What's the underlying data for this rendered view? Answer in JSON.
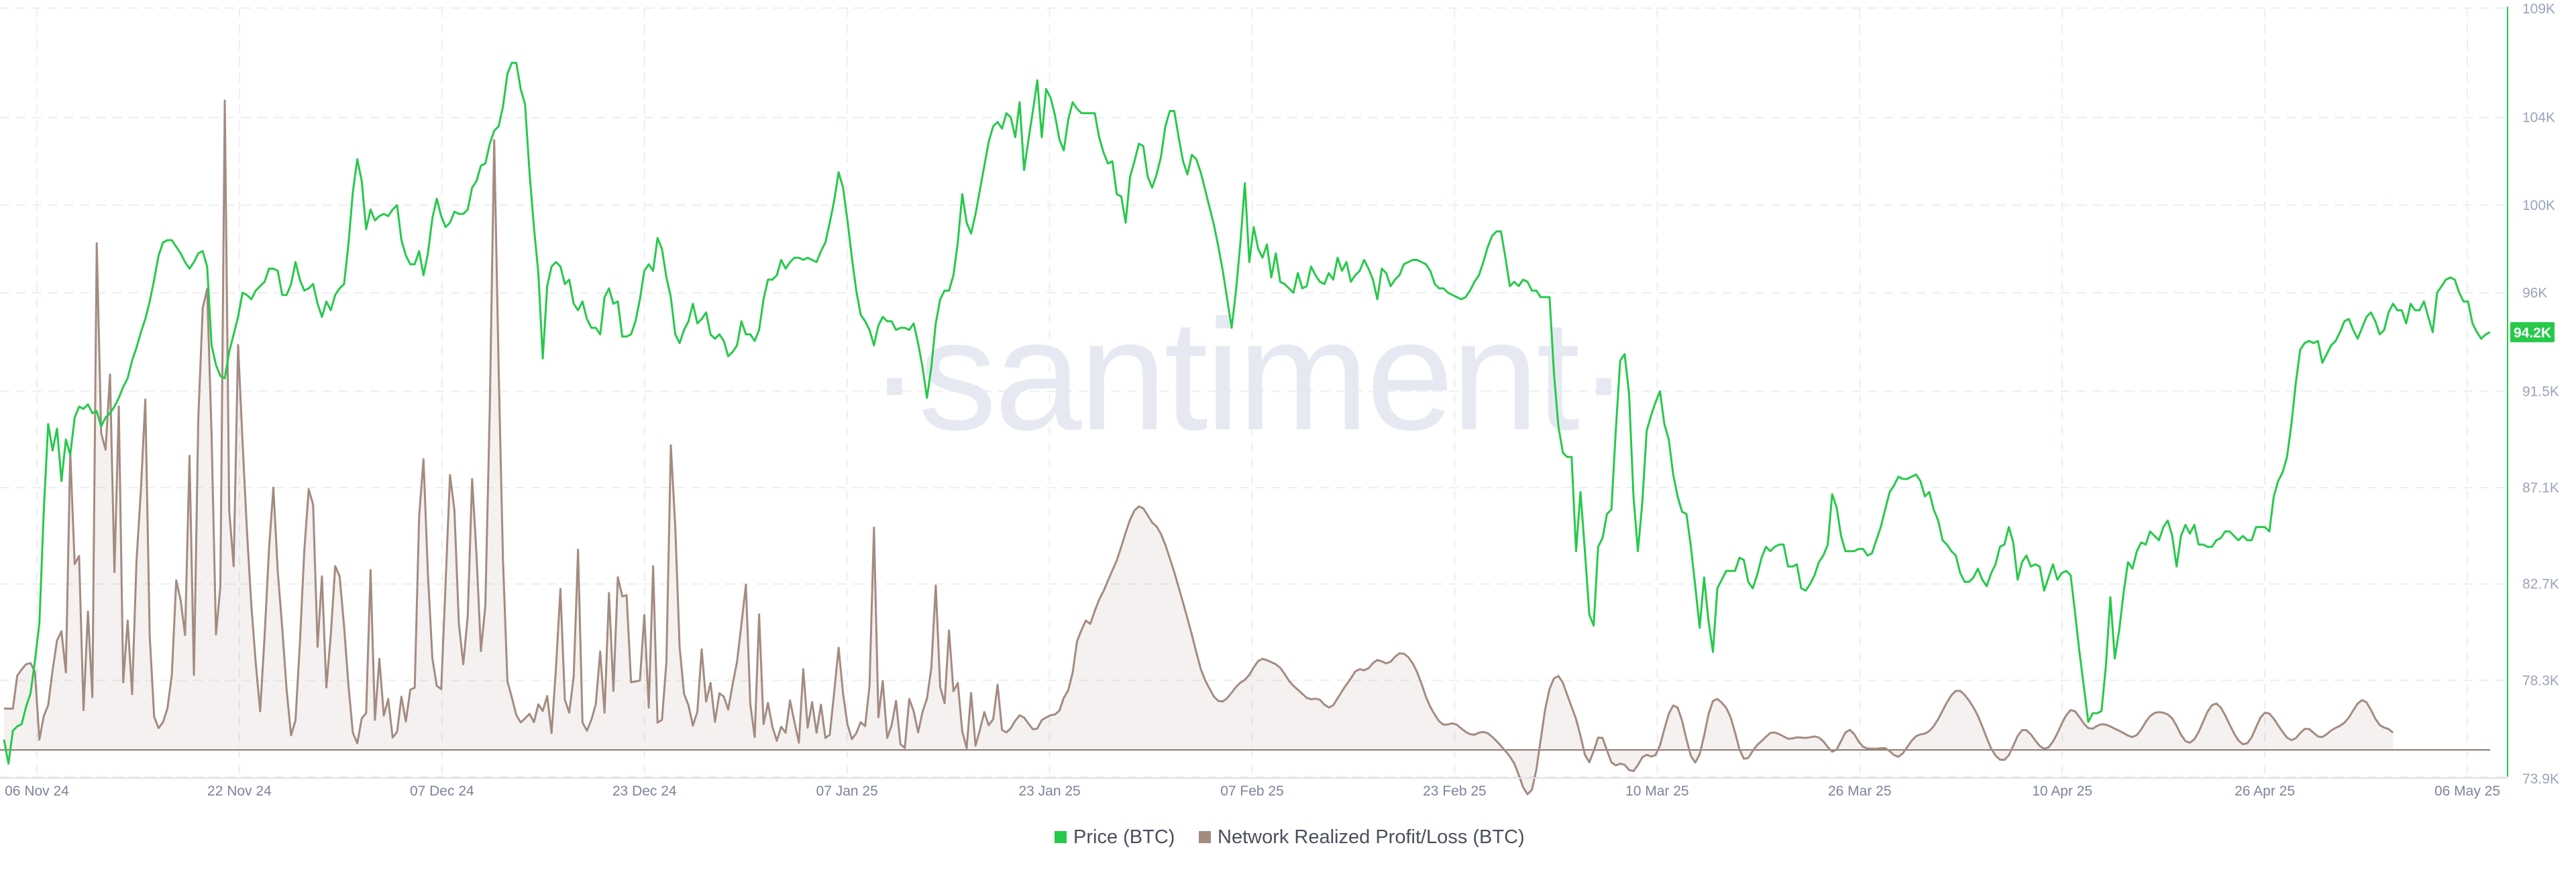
{
  "chart_data": {
    "type": "line",
    "watermark": "·santiment·",
    "x_tick_labels": [
      "06 Nov 24",
      "22 Nov 24",
      "07 Dec 24",
      "23 Dec 24",
      "07 Jan 25",
      "23 Jan 25",
      "07 Feb 25",
      "23 Feb 25",
      "10 Mar 25",
      "26 Mar 25",
      "10 Apr 25",
      "26 Apr 25",
      "06 May 25"
    ],
    "y_tick_labels": [
      "109K",
      "104K",
      "100K",
      "96K",
      "91.5K",
      "87.1K",
      "82.7K",
      "78.3K",
      "73.9K"
    ],
    "y_range": [
      73.9,
      109
    ],
    "grid": true,
    "legend_position": "bottom-center",
    "current_price_label": "94.2K",
    "series": [
      {
        "name": "Price (BTC)",
        "color": "#26c94a",
        "axis": "right",
        "values": [
          75.6,
          74.5,
          76.0,
          76.2,
          76.3,
          77.1,
          77.7,
          79.2,
          80.9,
          86.0,
          90.0,
          88.8,
          89.8,
          87.4,
          89.3,
          88.6,
          90.3,
          90.8,
          90.7,
          90.9,
          90.5,
          90.6,
          89.9,
          90.3,
          90.5,
          90.8,
          91.2,
          91.7,
          92.1,
          92.9,
          93.5,
          94.2,
          94.8,
          95.6,
          96.6,
          97.7,
          98.3,
          98.4,
          98.4,
          98.1,
          97.8,
          97.4,
          97.1,
          97.4,
          97.8,
          97.9,
          97.2,
          93.6,
          92.7,
          92.2,
          92.1,
          93.3,
          94.1,
          94.9,
          96.0,
          95.9,
          95.7,
          96.1,
          96.3,
          96.5,
          97.1,
          97.1,
          97.0,
          95.9,
          95.9,
          96.4,
          97.4,
          96.6,
          96.1,
          96.2,
          96.4,
          95.5,
          94.9,
          95.6,
          95.2,
          95.9,
          96.2,
          96.4,
          98.2,
          100.6,
          102.1,
          101.1,
          98.9,
          99.8,
          99.3,
          99.5,
          99.6,
          99.5,
          99.8,
          100.0,
          98.4,
          97.7,
          97.3,
          97.3,
          97.9,
          96.8,
          97.8,
          99.4,
          100.3,
          99.5,
          99.0,
          99.2,
          99.7,
          99.6,
          99.6,
          99.8,
          100.8,
          101.1,
          101.8,
          101.9,
          102.8,
          103.4,
          103.6,
          104.5,
          106.0,
          106.5,
          106.5,
          105.3,
          104.6,
          101.5,
          99.0,
          96.9,
          93.0,
          96.3,
          97.2,
          97.4,
          97.2,
          96.4,
          96.6,
          95.5,
          95.2,
          95.6,
          94.8,
          94.4,
          94.4,
          94.1,
          95.8,
          96.2,
          95.5,
          95.6,
          94.0,
          94.0,
          94.1,
          94.7,
          95.7,
          97.0,
          97.3,
          97.0,
          98.5,
          98.0,
          96.7,
          95.8,
          94.1,
          93.7,
          94.3,
          94.7,
          95.5,
          94.6,
          94.8,
          95.1,
          94.1,
          93.9,
          94.1,
          93.8,
          93.1,
          93.3,
          93.6,
          94.7,
          94.1,
          94.1,
          93.8,
          94.3,
          95.7,
          96.6,
          96.6,
          96.8,
          97.5,
          97.1,
          97.4,
          97.6,
          97.6,
          97.5,
          97.6,
          97.5,
          97.4,
          97.9,
          98.3,
          99.2,
          100.2,
          101.5,
          100.8,
          99.3,
          97.6,
          96.1,
          95.0,
          94.7,
          94.3,
          93.6,
          94.5,
          94.9,
          94.7,
          94.7,
          94.3,
          94.4,
          94.4,
          94.3,
          94.6,
          93.7,
          92.6,
          91.2,
          92.6,
          94.6,
          95.7,
          96.1,
          96.1,
          96.8,
          98.3,
          100.5,
          99.2,
          98.7,
          99.6,
          100.7,
          101.8,
          102.9,
          103.6,
          103.8,
          103.5,
          104.2,
          104.0,
          103.1,
          104.7,
          101.6,
          103.0,
          104.3,
          105.7,
          103.1,
          105.3,
          104.9,
          104.1,
          103.0,
          102.5,
          103.9,
          104.7,
          104.4,
          104.2,
          104.2,
          104.2,
          104.2,
          103.1,
          102.4,
          101.9,
          102.0,
          100.5,
          100.4,
          99.2,
          101.3,
          102.0,
          102.8,
          102.7,
          101.3,
          100.8,
          101.4,
          102.2,
          103.6,
          104.3,
          104.3,
          103.1,
          102.0,
          101.4,
          102.3,
          102.1,
          101.5,
          100.7,
          99.9,
          99.1,
          98.1,
          97.0,
          95.7,
          94.4,
          96.1,
          98.3,
          101.0,
          97.4,
          99.0,
          98.0,
          97.6,
          98.2,
          96.7,
          97.8,
          96.5,
          96.4,
          96.2,
          96.0,
          96.9,
          96.2,
          96.3,
          97.2,
          96.8,
          96.5,
          96.4,
          96.9,
          96.6,
          97.6,
          97.0,
          97.4,
          96.5,
          96.8,
          97.0,
          97.5,
          97.1,
          96.6,
          95.7,
          97.1,
          96.9,
          96.3,
          96.6,
          96.8,
          97.3,
          97.4,
          97.5,
          97.5,
          97.4,
          97.3,
          97.0,
          96.4,
          96.2,
          96.2,
          96.0,
          95.9,
          95.8,
          95.7,
          95.8,
          96.1,
          96.5,
          96.8,
          97.4,
          98.1,
          98.6,
          98.8,
          98.8,
          97.6,
          96.3,
          96.5,
          96.3,
          96.6,
          96.5,
          96.1,
          96.1,
          95.8,
          95.8,
          95.8,
          92.3,
          89.9,
          88.7,
          88.5,
          88.5,
          84.2,
          86.9,
          84.2,
          81.3,
          80.8,
          84.4,
          84.8,
          85.9,
          86.1,
          89.7,
          92.9,
          93.2,
          91.4,
          86.7,
          84.2,
          86.4,
          89.7,
          90.4,
          91.0,
          91.5,
          90.0,
          89.3,
          87.7,
          86.7,
          86.0,
          85.9,
          84.4,
          82.6,
          80.7,
          83.0,
          81.0,
          79.6,
          82.5,
          82.9,
          83.3,
          83.3,
          83.3,
          83.9,
          83.8,
          82.8,
          82.5,
          83.1,
          83.9,
          84.4,
          84.2,
          84.4,
          84.5,
          84.5,
          83.5,
          83.5,
          83.6,
          82.5,
          82.4,
          82.7,
          83.1,
          83.7,
          84.0,
          84.5,
          86.8,
          86.2,
          84.9,
          84.2,
          84.2,
          84.2,
          84.3,
          84.3,
          84.0,
          84.1,
          84.7,
          85.3,
          86.1,
          86.9,
          87.2,
          87.6,
          87.5,
          87.5,
          87.6,
          87.7,
          87.4,
          86.7,
          86.9,
          86.1,
          85.6,
          84.7,
          84.5,
          84.2,
          84.0,
          83.2,
          82.8,
          82.8,
          83.0,
          83.4,
          82.9,
          82.6,
          83.2,
          83.6,
          84.4,
          84.5,
          85.3,
          84.6,
          82.9,
          83.7,
          84.0,
          83.5,
          83.6,
          83.5,
          82.4,
          83.0,
          83.6,
          82.9,
          83.2,
          83.3,
          83.1,
          81.4,
          79.6,
          78.0,
          76.4,
          76.8,
          76.8,
          76.9,
          79.0,
          82.1,
          79.3,
          80.6,
          82.3,
          83.7,
          83.4,
          84.2,
          84.6,
          84.5,
          85.1,
          84.9,
          84.7,
          85.3,
          85.6,
          84.9,
          83.5,
          84.9,
          85.4,
          85.0,
          85.4,
          84.5,
          84.5,
          84.4,
          84.4,
          84.7,
          84.8,
          85.1,
          85.1,
          84.9,
          84.7,
          84.9,
          84.7,
          84.7,
          85.3,
          85.3,
          85.3,
          85.1,
          86.7,
          87.4,
          87.8,
          88.5,
          90.0,
          91.9,
          93.4,
          93.7,
          93.8,
          93.7,
          93.8,
          92.8,
          93.2,
          93.6,
          93.8,
          94.2,
          94.7,
          94.8,
          94.3,
          93.9,
          94.4,
          94.9,
          95.1,
          94.7,
          94.1,
          94.3,
          95.1,
          95.5,
          95.2,
          95.2,
          94.6,
          95.5,
          95.2,
          95.2,
          95.6,
          94.9,
          94.2,
          96.0,
          96.3,
          96.6,
          96.7,
          96.6,
          96.0,
          95.6,
          95.6,
          94.6,
          94.2,
          93.9,
          94.1,
          94.2
        ]
      },
      {
        "name": "Network Realized Profit/Loss (BTC)",
        "color": "#a48b80",
        "axis": "hidden",
        "values": [
          1.45,
          1.44,
          1.44,
          2.59,
          2.81,
          2.99,
          3.03,
          2.73,
          0.36,
          1.18,
          1.56,
          2.78,
          3.82,
          4.14,
          2.71,
          10.4,
          6.49,
          6.77,
          1.39,
          4.83,
          1.84,
          17.69,
          11.06,
          10.48,
          13.11,
          6.21,
          11.99,
          2.36,
          4.52,
          1.95,
          6.6,
          9.1,
          12.23,
          3.97,
          1.16,
          0.76,
          0.97,
          1.45,
          2.61,
          5.92,
          5.23,
          4.01,
          10.27,
          2.62,
          11.58,
          15.43,
          16.1,
          10.99,
          4.03,
          5.72,
          22.67,
          8.35,
          6.41,
          14.14,
          10.79,
          7.7,
          5.07,
          3.05,
          1.35,
          3.96,
          7.0,
          9.16,
          6.22,
          4.27,
          2.09,
          0.51,
          1.03,
          3.72,
          6.96,
          9.1,
          8.56,
          3.6,
          6.06,
          2.18,
          4.01,
          6.42,
          6.06,
          4.32,
          2.27,
          0.6,
          0.23,
          1.1,
          1.29,
          6.28,
          1.05,
          3.18,
          1.2,
          1.78,
          0.43,
          0.63,
          1.86,
          0.99,
          2.1,
          2.17,
          8.15,
          10.15,
          6.14,
          3.2,
          2.24,
          2.12,
          5.86,
          9.6,
          8.37,
          4.42,
          2.99,
          4.66,
          9.46,
          6.82,
          3.45,
          5.04,
          11.91,
          21.29,
          13.34,
          6.61,
          2.4,
          1.83,
          1.22,
          0.96,
          1.1,
          1.26,
          0.97,
          1.59,
          1.36,
          1.88,
          0.59,
          2.87,
          5.62,
          1.75,
          1.3,
          2.57,
          6.99,
          0.96,
          0.67,
          1.05,
          1.59,
          3.43,
          1.3,
          5.48,
          2.06,
          6.03,
          5.36,
          5.4,
          2.36,
          2.39,
          2.42,
          4.71,
          1.48,
          6.41,
          0.95,
          1.05,
          3.07,
          10.64,
          7.81,
          3.59,
          1.96,
          1.56,
          0.85,
          1.33,
          3.51,
          1.69,
          2.34,
          0.98,
          1.98,
          1.86,
          1.41,
          2.29,
          3.08,
          4.41,
          5.77,
          1.59,
          0.45,
          4.73,
          0.9,
          1.64,
          0.81,
          0.32,
          0.81,
          0.6,
          1.73,
          0.97,
          0.25,
          2.82,
          0.78,
          1.67,
          0.6,
          1.58,
          0.42,
          0.53,
          2.01,
          3.57,
          1.98,
          0.89,
          0.38,
          0.58,
          0.97,
          0.83,
          2.24,
          7.76,
          1.14,
          2.41,
          0.42,
          0.86,
          1.71,
          0.2,
          0.07,
          1.78,
          1.35,
          0.61,
          1.33,
          1.79,
          2.86,
          5.74,
          2.2,
          1.63,
          4.17,
          2.05,
          2.34,
          0.65,
          0.06,
          1.99,
          0.15,
          0.71,
          1.32,
          0.86,
          1.07,
          2.28,
          0.7,
          0.61,
          0.76,
          1.02,
          1.21,
          1.13,
          0.92,
          0.72,
          0.75,
          1.04,
          1.13,
          1.21,
          1.24,
          1.37,
          1.82,
          2.08,
          2.7,
          3.8,
          4.19,
          4.52,
          4.4,
          4.85,
          5.25,
          5.55,
          5.91,
          6.27,
          6.62,
          7.09,
          7.59,
          8.04,
          8.36,
          8.5,
          8.43,
          8.19,
          7.94,
          7.8,
          7.54,
          7.16,
          6.69,
          6.21,
          5.68,
          5.14,
          4.59,
          4.02,
          3.41,
          2.83,
          2.43,
          2.14,
          1.86,
          1.71,
          1.69,
          1.81,
          2.0,
          2.2,
          2.35,
          2.45,
          2.62,
          2.88,
          3.1,
          3.18,
          3.13,
          3.06,
          2.99,
          2.87,
          2.65,
          2.41,
          2.24,
          2.1,
          1.96,
          1.82,
          1.77,
          1.79,
          1.75,
          1.58,
          1.48,
          1.56,
          1.8,
          2.05,
          2.28,
          2.5,
          2.74,
          2.82,
          2.78,
          2.85,
          3.03,
          3.14,
          3.09,
          3.02,
          3.08,
          3.25,
          3.37,
          3.36,
          3.24,
          3.03,
          2.72,
          2.31,
          1.86,
          1.5,
          1.23,
          1.0,
          0.88,
          0.89,
          0.93,
          0.88,
          0.75,
          0.63,
          0.55,
          0.53,
          0.6,
          0.63,
          0.58,
          0.46,
          0.31,
          0.14,
          -0.04,
          -0.23,
          -0.47,
          -0.86,
          -1.3,
          -1.55,
          -1.39,
          -0.69,
          0.36,
          1.41,
          2.13,
          2.5,
          2.58,
          2.35,
          1.92,
          1.5,
          1.08,
          0.49,
          -0.17,
          -0.43,
          -0.04,
          0.43,
          0.42,
          -0.02,
          -0.43,
          -0.54,
          -0.48,
          -0.52,
          -0.7,
          -0.74,
          -0.53,
          -0.26,
          -0.17,
          -0.23,
          -0.18,
          0.16,
          0.73,
          1.26,
          1.55,
          1.48,
          1.02,
          0.37,
          -0.21,
          -0.44,
          -0.15,
          0.5,
          1.25,
          1.71,
          1.78,
          1.65,
          1.47,
          1.14,
          0.61,
          0.02,
          -0.31,
          -0.28,
          -0.04,
          0.17,
          0.31,
          0.46,
          0.59,
          0.61,
          0.55,
          0.47,
          0.39,
          0.4,
          0.44,
          0.43,
          0.42,
          0.44,
          0.47,
          0.43,
          0.3,
          0.1,
          -0.06,
          0.01,
          0.31,
          0.61,
          0.7,
          0.55,
          0.29,
          0.11,
          0.05,
          0.04,
          0.04,
          0.06,
          0.06,
          -0.04,
          -0.18,
          -0.24,
          -0.12,
          0.1,
          0.32,
          0.48,
          0.54,
          0.57,
          0.66,
          0.83,
          1.08,
          1.37,
          1.66,
          1.91,
          2.06,
          2.06,
          1.92,
          1.72,
          1.49,
          1.19,
          0.82,
          0.42,
          0.05,
          -0.2,
          -0.34,
          -0.35,
          -0.19,
          0.14,
          0.49,
          0.69,
          0.69,
          0.54,
          0.33,
          0.14,
          0.04,
          0.09,
          0.29,
          0.58,
          0.92,
          1.21,
          1.39,
          1.35,
          1.15,
          0.92,
          0.76,
          0.74,
          0.84,
          0.9,
          0.88,
          0.82,
          0.74,
          0.67,
          0.59,
          0.5,
          0.45,
          0.52,
          0.72,
          0.98,
          1.18,
          1.29,
          1.32,
          1.3,
          1.24,
          1.1,
          0.84,
          0.53,
          0.31,
          0.25,
          0.37,
          0.63,
          0.98,
          1.33,
          1.56,
          1.62,
          1.48,
          1.21,
          0.89,
          0.58,
          0.33,
          0.2,
          0.23,
          0.44,
          0.79,
          1.13,
          1.3,
          1.27,
          1.09,
          0.86,
          0.63,
          0.43,
          0.34,
          0.41,
          0.59,
          0.73,
          0.73,
          0.6,
          0.47,
          0.45,
          0.55,
          0.68,
          0.77,
          0.84,
          0.95,
          1.13,
          1.38,
          1.62,
          1.74,
          1.66,
          1.4,
          1.09,
          0.87,
          0.78,
          0.73,
          0.6
        ]
      }
    ]
  },
  "legend": [
    {
      "label": "Price (BTC)",
      "color": "#26c94a"
    },
    {
      "label": "Network Realized Profit/Loss (BTC)",
      "color": "#a48b80"
    }
  ]
}
